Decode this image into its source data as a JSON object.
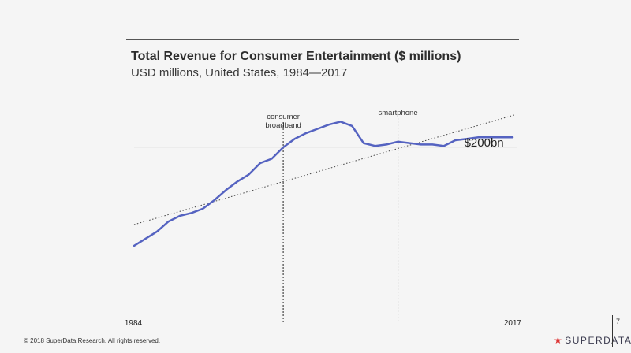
{
  "chart_data": {
    "type": "line",
    "title": "Total Revenue for Consumer Entertainment ($ millions)",
    "subtitle": "USD millions, United States, 1984—2017",
    "x_tick_labels": [
      "1984",
      "2017"
    ],
    "xlim": [
      1984,
      2017
    ],
    "grid": false,
    "series": [
      {
        "x": [
          1984,
          1985,
          1986,
          1987,
          1988,
          1989,
          1990,
          1991,
          1992,
          1993,
          1994,
          1995,
          1996,
          1997,
          1998,
          1999,
          2000,
          2001,
          2002,
          2003,
          2004,
          2005,
          2006,
          2007,
          2008,
          2009,
          2010,
          2011,
          2012,
          2013,
          2014,
          2015,
          2016,
          2017
        ],
        "y": [
          0.1,
          0.15,
          0.2,
          0.27,
          0.31,
          0.33,
          0.36,
          0.42,
          0.49,
          0.55,
          0.6,
          0.68,
          0.71,
          0.79,
          0.85,
          0.89,
          0.92,
          0.95,
          0.97,
          0.94,
          0.82,
          0.8,
          0.81,
          0.83,
          0.82,
          0.81,
          0.81,
          0.8,
          0.84,
          0.85,
          0.86,
          0.86,
          0.86,
          0.86
        ],
        "color": "#5563c1"
      }
    ],
    "trendline": {
      "style": "dotted",
      "color": "#444444"
    },
    "annotations": [
      {
        "label": "consumer broadband",
        "lines": [
          "consumer",
          "broadband"
        ],
        "x": 1997,
        "style": "dashed vertical line"
      },
      {
        "label": "smartphone",
        "x": 2007,
        "style": "dashed vertical line"
      },
      {
        "label": "$200bn",
        "x": 2014.5,
        "type": "end label"
      }
    ]
  },
  "footer": {
    "copyright": "© 2018 SuperData Research. All rights reserved."
  },
  "brand": {
    "star": "★",
    "name": "SUPERDATA",
    "star_color": "#dd3333"
  },
  "page": {
    "number": "7"
  }
}
